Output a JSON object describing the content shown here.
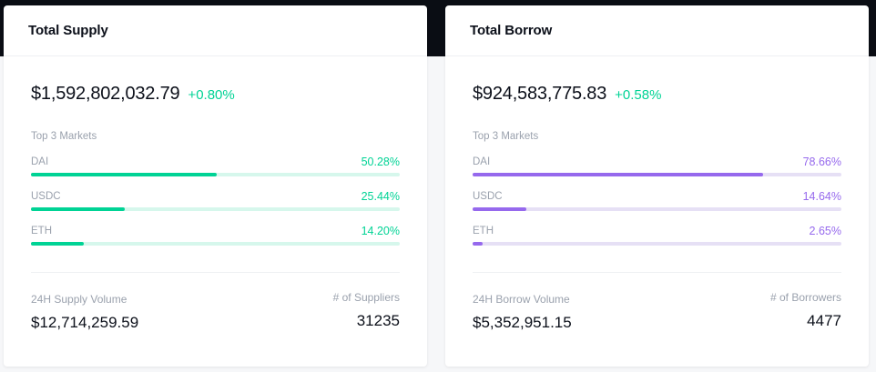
{
  "supply": {
    "title": "Total Supply",
    "total": "$1,592,802,032.79",
    "change": "+0.80%",
    "markets_label": "Top 3 Markets",
    "markets": [
      {
        "name": "DAI",
        "pct_label": "50.28%",
        "pct": 50.28
      },
      {
        "name": "USDC",
        "pct_label": "25.44%",
        "pct": 25.44
      },
      {
        "name": "ETH",
        "pct_label": "14.20%",
        "pct": 14.2
      }
    ],
    "volume_label": "24H Supply Volume",
    "volume": "$12,714,259.59",
    "count_label": "# of Suppliers",
    "count": "31235",
    "accent": "#00d395"
  },
  "borrow": {
    "title": "Total Borrow",
    "total": "$924,583,775.83",
    "change": "+0.58%",
    "markets_label": "Top 3 Markets",
    "markets": [
      {
        "name": "DAI",
        "pct_label": "78.66%",
        "pct": 78.66
      },
      {
        "name": "USDC",
        "pct_label": "14.64%",
        "pct": 14.64
      },
      {
        "name": "ETH",
        "pct_label": "2.65%",
        "pct": 2.65
      }
    ],
    "volume_label": "24H Borrow Volume",
    "volume": "$5,352,951.15",
    "count_label": "# of Borrowers",
    "count": "4477",
    "accent": "#9669ed"
  },
  "change_color": "#00d395"
}
